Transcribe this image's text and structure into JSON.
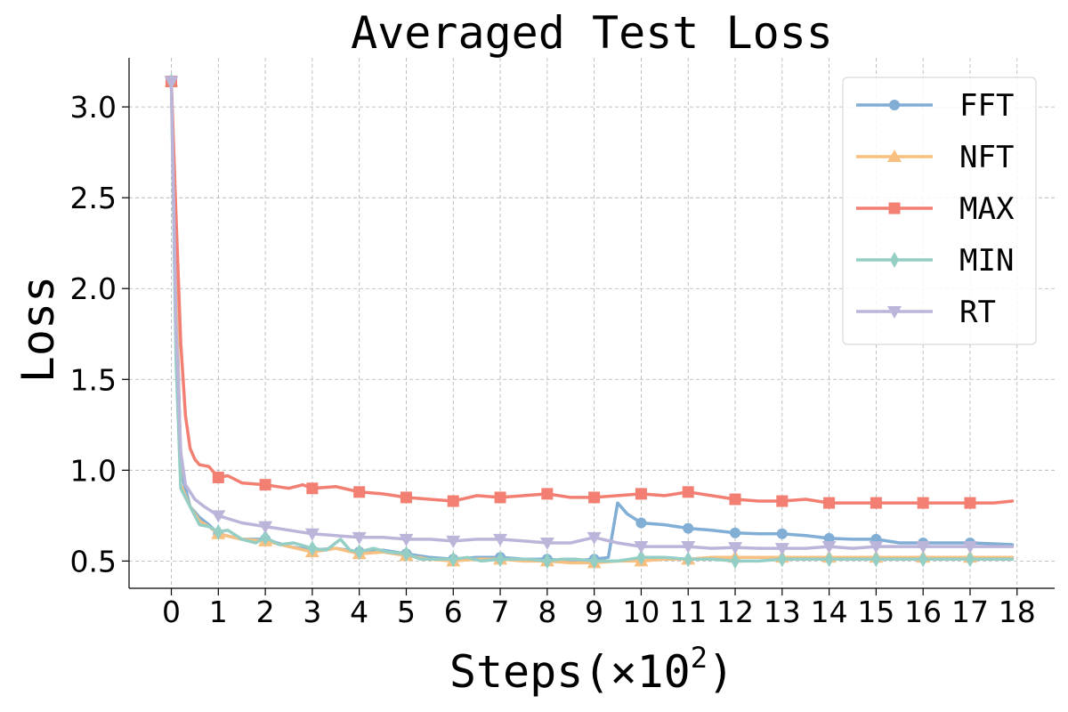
{
  "chart_data": {
    "type": "line",
    "title": "Averaged Test Loss",
    "xlabel": "Steps(×10",
    "xlabel_exponent": "2",
    "xlabel_suffix": ")",
    "ylabel": "Loss",
    "xlim": [
      -0.9,
      18.8
    ],
    "ylim": [
      0.35,
      3.27
    ],
    "xticks": [
      0,
      1,
      2,
      3,
      4,
      5,
      6,
      7,
      8,
      9,
      10,
      11,
      12,
      13,
      14,
      15,
      16,
      17,
      18
    ],
    "yticks": [
      0.5,
      1.0,
      1.5,
      2.0,
      2.5,
      3.0
    ],
    "ytick_labels": [
      "0.5",
      "1.0",
      "1.5",
      "2.0",
      "2.5",
      "3.0"
    ],
    "grid": true,
    "legend_position": "top-right",
    "series": [
      {
        "name": "FFT",
        "color": "#80aed4",
        "marker": "circle",
        "x": [
          0,
          0.2,
          0.4,
          0.6,
          0.8,
          1,
          1.5,
          2,
          2.5,
          3,
          3.5,
          4,
          4.5,
          5,
          5.5,
          6,
          6.5,
          7,
          7.5,
          8,
          8.5,
          9,
          9.3,
          9.5,
          9.7,
          10,
          10.5,
          11,
          11.5,
          12,
          12.5,
          13,
          13.5,
          14,
          14.5,
          15,
          15.5,
          16,
          16.5,
          17,
          17.5,
          17.9
        ],
        "y": [
          3.14,
          1.0,
          0.8,
          0.74,
          0.7,
          0.65,
          0.62,
          0.62,
          0.58,
          0.56,
          0.57,
          0.55,
          0.56,
          0.54,
          0.52,
          0.51,
          0.52,
          0.52,
          0.51,
          0.51,
          0.5,
          0.51,
          0.52,
          0.82,
          0.76,
          0.71,
          0.7,
          0.68,
          0.67,
          0.655,
          0.65,
          0.65,
          0.64,
          0.625,
          0.62,
          0.62,
          0.6,
          0.6,
          0.6,
          0.6,
          0.595,
          0.59
        ]
      },
      {
        "name": "NFT",
        "color": "#f7bf80",
        "marker": "triangle-up",
        "x": [
          0,
          0.2,
          0.4,
          0.6,
          0.8,
          1,
          1.5,
          2,
          2.5,
          3,
          3.5,
          4,
          4.5,
          5,
          5.5,
          6,
          6.5,
          7,
          7.5,
          8,
          8.5,
          9,
          9.5,
          10,
          10.5,
          11,
          11.5,
          12,
          12.5,
          13,
          13.5,
          14,
          14.5,
          15,
          15.5,
          16,
          16.5,
          17,
          17.5,
          17.9
        ],
        "y": [
          3.14,
          0.92,
          0.8,
          0.72,
          0.69,
          0.65,
          0.62,
          0.61,
          0.58,
          0.55,
          0.57,
          0.54,
          0.55,
          0.53,
          0.51,
          0.5,
          0.51,
          0.51,
          0.5,
          0.5,
          0.49,
          0.49,
          0.5,
          0.5,
          0.51,
          0.51,
          0.52,
          0.52,
          0.52,
          0.52,
          0.52,
          0.52,
          0.52,
          0.52,
          0.52,
          0.52,
          0.52,
          0.52,
          0.52,
          0.52
        ]
      },
      {
        "name": "MAX",
        "color": "#f27f72",
        "marker": "square",
        "x": [
          0,
          0.1,
          0.2,
          0.3,
          0.4,
          0.5,
          0.6,
          0.8,
          1,
          1.2,
          1.5,
          2,
          2.5,
          2.8,
          3,
          3.5,
          4,
          4.5,
          5,
          5.5,
          6,
          6.5,
          7,
          7.5,
          8,
          8.5,
          9,
          9.5,
          10,
          10.5,
          11,
          11.5,
          12,
          12.5,
          13,
          13.5,
          14,
          14.5,
          15,
          15.5,
          16,
          16.5,
          17,
          17.5,
          17.9
        ],
        "y": [
          3.14,
          2.4,
          1.7,
          1.3,
          1.12,
          1.06,
          1.03,
          1.02,
          0.96,
          0.97,
          0.93,
          0.92,
          0.9,
          0.92,
          0.9,
          0.91,
          0.88,
          0.87,
          0.85,
          0.84,
          0.83,
          0.86,
          0.85,
          0.86,
          0.87,
          0.85,
          0.85,
          0.86,
          0.87,
          0.86,
          0.88,
          0.86,
          0.84,
          0.83,
          0.83,
          0.84,
          0.82,
          0.82,
          0.82,
          0.82,
          0.82,
          0.82,
          0.82,
          0.82,
          0.83
        ]
      },
      {
        "name": "MIN",
        "color": "#94ceC4",
        "marker": "thin-diamond",
        "x": [
          0,
          0.1,
          0.2,
          0.4,
          0.6,
          0.8,
          1,
          1.2,
          1.5,
          1.8,
          2,
          2.3,
          2.6,
          3,
          3.3,
          3.6,
          3.8,
          4,
          4.3,
          4.6,
          5,
          5.3,
          5.6,
          6,
          6.3,
          6.6,
          7,
          7.3,
          7.6,
          8,
          8.3,
          8.6,
          9,
          9.5,
          10,
          10.5,
          11,
          11.5,
          12,
          12.5,
          13,
          13.5,
          14,
          14.5,
          15,
          15.5,
          16,
          16.5,
          17,
          17.5,
          17.9
        ],
        "y": [
          3.14,
          1.6,
          0.9,
          0.8,
          0.7,
          0.69,
          0.66,
          0.67,
          0.62,
          0.6,
          0.63,
          0.59,
          0.6,
          0.57,
          0.56,
          0.62,
          0.56,
          0.55,
          0.57,
          0.55,
          0.54,
          0.51,
          0.51,
          0.51,
          0.52,
          0.5,
          0.51,
          0.51,
          0.51,
          0.5,
          0.51,
          0.51,
          0.5,
          0.5,
          0.52,
          0.52,
          0.51,
          0.51,
          0.5,
          0.5,
          0.51,
          0.51,
          0.51,
          0.51,
          0.51,
          0.51,
          0.51,
          0.51,
          0.51,
          0.51,
          0.51
        ]
      },
      {
        "name": "RT",
        "color": "#bcb5da",
        "marker": "triangle-down",
        "x": [
          0,
          0.1,
          0.2,
          0.3,
          0.5,
          0.7,
          1,
          1.5,
          2,
          2.5,
          3,
          3.5,
          4,
          4.5,
          5,
          5.5,
          6,
          6.5,
          7,
          7.5,
          8,
          8.5,
          9,
          9.5,
          10,
          10.5,
          11,
          11.5,
          12,
          12.5,
          13,
          13.5,
          14,
          14.5,
          15,
          15.5,
          16,
          16.5,
          17,
          17.5,
          17.9
        ],
        "y": [
          3.14,
          1.8,
          1.1,
          0.92,
          0.84,
          0.8,
          0.75,
          0.71,
          0.69,
          0.67,
          0.65,
          0.64,
          0.63,
          0.63,
          0.62,
          0.62,
          0.61,
          0.62,
          0.62,
          0.61,
          0.6,
          0.6,
          0.63,
          0.6,
          0.58,
          0.58,
          0.58,
          0.57,
          0.575,
          0.57,
          0.57,
          0.57,
          0.58,
          0.57,
          0.58,
          0.58,
          0.58,
          0.58,
          0.58,
          0.58,
          0.58
        ]
      }
    ]
  }
}
